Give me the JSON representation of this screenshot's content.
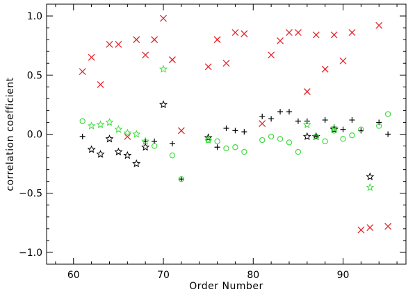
{
  "chart_data": {
    "type": "scatter",
    "title": "",
    "xlabel": "Order Number",
    "ylabel": "correlation coefficient",
    "xlim": [
      57,
      97
    ],
    "ylim": [
      -1.1,
      1.1
    ],
    "xticks": [
      60,
      70,
      80,
      90
    ],
    "xtick_labels": [
      "60",
      "70",
      "80",
      "90"
    ],
    "yticks": [
      -1.0,
      -0.5,
      0.0,
      0.5,
      1.0
    ],
    "ytick_labels": [
      "−1.0",
      "−0.5",
      "0.0",
      "0.5",
      "1.0"
    ],
    "grid": false,
    "legend": "none",
    "series": [
      {
        "marker": "x",
        "color": "#e8242a",
        "size": "large",
        "points": [
          [
            61,
            0.53
          ],
          [
            62,
            0.65
          ],
          [
            63,
            0.42
          ],
          [
            64,
            0.76
          ],
          [
            65,
            0.76
          ],
          [
            66,
            -0.02
          ],
          [
            67,
            0.8
          ],
          [
            68,
            0.67
          ],
          [
            69,
            0.8
          ],
          [
            70,
            0.98
          ],
          [
            71,
            0.63
          ],
          [
            72,
            0.03
          ],
          [
            75,
            0.57
          ],
          [
            76,
            0.8
          ],
          [
            77,
            0.6
          ],
          [
            78,
            0.86
          ],
          [
            79,
            0.85
          ],
          [
            81,
            0.09
          ],
          [
            82,
            0.67
          ],
          [
            83,
            0.79
          ],
          [
            84,
            0.86
          ],
          [
            85,
            0.86
          ],
          [
            86,
            0.36
          ],
          [
            87,
            0.84
          ],
          [
            88,
            0.55
          ],
          [
            89,
            0.84
          ],
          [
            90,
            0.62
          ],
          [
            91,
            0.86
          ],
          [
            92,
            -0.81
          ],
          [
            93,
            -0.79
          ],
          [
            94,
            0.92
          ],
          [
            95,
            -0.78
          ]
        ]
      },
      {
        "marker": "plus",
        "color": "#000000",
        "points": [
          [
            61,
            -0.02
          ],
          [
            68,
            -0.06
          ],
          [
            69,
            -0.06
          ],
          [
            71,
            -0.08
          ],
          [
            72,
            -0.38
          ],
          [
            76,
            -0.11
          ],
          [
            77,
            0.05
          ],
          [
            78,
            0.03
          ],
          [
            79,
            0.02
          ],
          [
            81,
            0.15
          ],
          [
            82,
            0.13
          ],
          [
            83,
            0.19
          ],
          [
            84,
            0.19
          ],
          [
            85,
            0.11
          ],
          [
            86,
            0.11
          ],
          [
            87,
            -0.02
          ],
          [
            88,
            0.12
          ],
          [
            89,
            0.06
          ],
          [
            90,
            0.04
          ],
          [
            91,
            0.12
          ],
          [
            92,
            0.03
          ],
          [
            94,
            0.1
          ],
          [
            95,
            0.0
          ]
        ]
      },
      {
        "marker": "star",
        "color": "#000000",
        "points": [
          [
            62,
            -0.13
          ],
          [
            63,
            -0.17
          ],
          [
            64,
            -0.04
          ],
          [
            65,
            -0.15
          ],
          [
            66,
            -0.18
          ],
          [
            67,
            -0.25
          ],
          [
            68,
            -0.11
          ],
          [
            70,
            0.25
          ],
          [
            75,
            -0.03
          ],
          [
            86,
            -0.02
          ],
          [
            87,
            -0.02
          ],
          [
            89,
            0.04
          ],
          [
            93,
            -0.36
          ]
        ]
      },
      {
        "marker": "star",
        "color": "#3ddc3d",
        "points": [
          [
            62,
            0.07
          ],
          [
            63,
            0.08
          ],
          [
            64,
            0.1
          ],
          [
            65,
            0.04
          ],
          [
            66,
            0.01
          ],
          [
            67,
            0.0
          ],
          [
            68,
            -0.06
          ],
          [
            70,
            0.55
          ],
          [
            75,
            -0.05
          ],
          [
            86,
            0.08
          ],
          [
            89,
            0.05
          ],
          [
            93,
            -0.45
          ]
        ]
      },
      {
        "marker": "circle",
        "color": "#3ddc3d",
        "points": [
          [
            61,
            0.11
          ],
          [
            69,
            -0.1
          ],
          [
            71,
            -0.18
          ],
          [
            72,
            -0.38
          ],
          [
            75,
            -0.05
          ],
          [
            76,
            -0.06
          ],
          [
            77,
            -0.12
          ],
          [
            78,
            -0.11
          ],
          [
            79,
            -0.15
          ],
          [
            81,
            -0.05
          ],
          [
            82,
            -0.02
          ],
          [
            83,
            -0.04
          ],
          [
            84,
            -0.07
          ],
          [
            85,
            -0.15
          ],
          [
            87,
            -0.02
          ],
          [
            88,
            -0.06
          ],
          [
            89,
            0.03
          ],
          [
            90,
            -0.04
          ],
          [
            91,
            -0.01
          ],
          [
            92,
            0.04
          ],
          [
            94,
            0.07
          ],
          [
            95,
            0.17
          ]
        ]
      }
    ]
  }
}
